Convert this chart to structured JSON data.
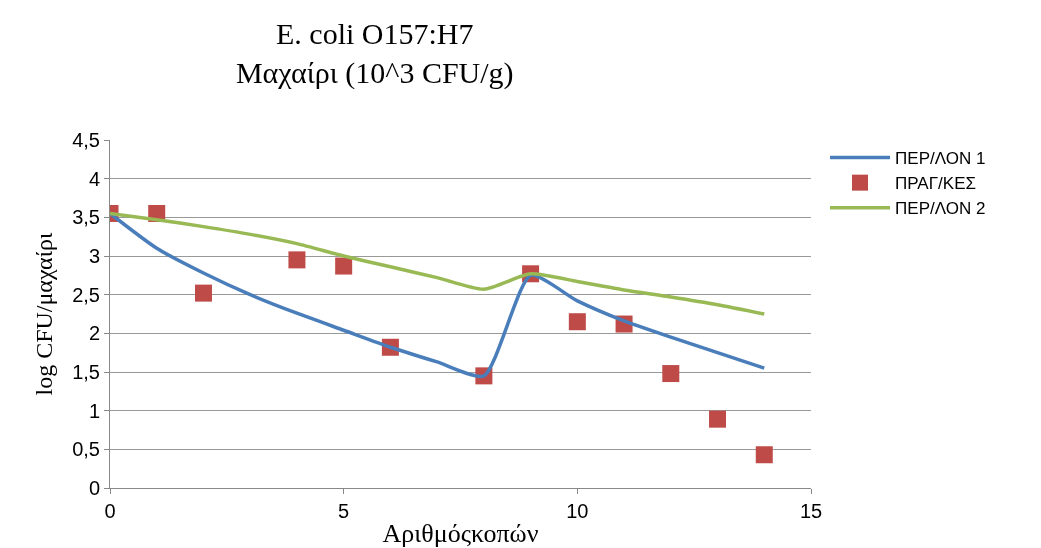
{
  "chart_data": {
    "type": "line",
    "title": "E. coli O157:H7\nΜαχαίρι (10^3 CFU/g)",
    "xlabel": "Αριθμόςκοπών",
    "ylabel": "log CFU/μαχαίρι",
    "x": [
      0,
      1,
      2,
      3,
      4,
      5,
      6,
      7,
      8,
      9,
      10,
      11,
      12,
      13,
      14
    ],
    "series": [
      {
        "name": "ΠΕΡ/ΛΟΝ 1",
        "color": "#4a7ebb",
        "marker": "none",
        "values": [
          3.55,
          3.1,
          2.78,
          2.5,
          2.26,
          2.04,
          1.82,
          1.63,
          1.45,
          2.75,
          2.42,
          2.16,
          1.95,
          1.75,
          1.55
        ]
      },
      {
        "name": "ΠΡΑΓ/ΚΕΣ",
        "type": "scatter",
        "color": "#be4b48",
        "marker": "square",
        "x": [
          0,
          1,
          2,
          4,
          5,
          6,
          8,
          9,
          10,
          11,
          12,
          13,
          14
        ],
        "values": [
          3.55,
          3.55,
          2.52,
          2.95,
          2.87,
          1.82,
          1.45,
          2.77,
          2.15,
          2.12,
          1.48,
          0.89,
          0.43
        ]
      },
      {
        "name": "ΠΕΡ/ΛΟΝ 2",
        "color": "#98b954",
        "marker": "none",
        "values": [
          3.55,
          3.47,
          3.38,
          3.28,
          3.16,
          3.0,
          2.86,
          2.72,
          2.57,
          2.77,
          2.67,
          2.56,
          2.47,
          2.37,
          2.25
        ]
      }
    ],
    "xlim": [
      0,
      15
    ],
    "xticks": [
      0,
      5,
      10,
      15
    ],
    "ylim": [
      0,
      4.5
    ],
    "yticks": [
      0,
      {
        "value": 0.5,
        "label": "0,5"
      },
      1,
      {
        "value": 1.5,
        "label": "1,5"
      },
      2,
      {
        "value": 2.5,
        "label": "2,5"
      },
      3,
      {
        "value": 3.5,
        "label": "3,5"
      },
      4,
      {
        "value": 4.5,
        "label": "4,5"
      }
    ],
    "grid": "y",
    "legend": "right",
    "line_style": "solid"
  }
}
